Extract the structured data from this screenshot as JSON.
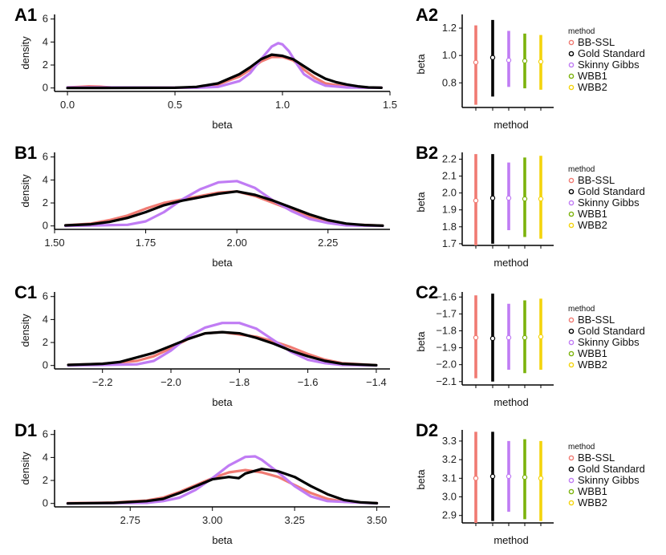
{
  "figure": {
    "legend_title": "method",
    "methods": [
      "BB-SSL",
      "Gold Standard",
      "Skinny Gibbs",
      "WBB1",
      "WBB2"
    ],
    "colors": {
      "BB-SSL": "#f07a72",
      "Gold Standard": "#000000",
      "Skinny Gibbs": "#c07cf4",
      "WBB1": "#7cb30c",
      "WBB2": "#f4d40c"
    }
  },
  "chart_data": [
    {
      "id": "A1",
      "type": "line",
      "label": "A1",
      "xlabel": "beta",
      "ylabel": "density",
      "xlim": [
        -0.06,
        1.5
      ],
      "ylim": [
        -0.3,
        6.4
      ],
      "x_ticks": [
        0.0,
        0.5,
        1.0,
        1.5
      ],
      "x_tick_labels": [
        "0.0",
        "0.5",
        "1.0",
        "1.5"
      ],
      "y_ticks": [
        0,
        2,
        4,
        6
      ],
      "y_tick_labels": [
        "0",
        "2",
        "4",
        "6"
      ],
      "series": [
        {
          "name": "BB-SSL",
          "x": [
            0.0,
            0.05,
            0.1,
            0.15,
            0.2,
            0.5,
            0.6,
            0.7,
            0.8,
            0.85,
            0.9,
            0.95,
            1.0,
            1.05,
            1.1,
            1.15,
            1.2,
            1.3,
            1.4,
            1.46
          ],
          "y": [
            0.05,
            0.1,
            0.15,
            0.12,
            0.05,
            0.02,
            0.05,
            0.3,
            1.0,
            1.6,
            2.3,
            2.7,
            2.7,
            2.4,
            1.6,
            0.9,
            0.4,
            0.1,
            0.03,
            0.02
          ]
        },
        {
          "name": "Skinny Gibbs",
          "x": [
            0.0,
            0.2,
            0.6,
            0.7,
            0.8,
            0.85,
            0.9,
            0.95,
            0.98,
            1.0,
            1.03,
            1.07,
            1.1,
            1.15,
            1.2,
            1.3,
            1.4,
            1.46
          ],
          "y": [
            0.05,
            0.05,
            0.02,
            0.1,
            0.6,
            1.3,
            2.5,
            3.6,
            3.9,
            3.8,
            3.2,
            2.0,
            1.2,
            0.6,
            0.2,
            0.05,
            0.02,
            0.02
          ]
        },
        {
          "name": "Gold Standard",
          "x": [
            0.0,
            0.5,
            0.6,
            0.7,
            0.8,
            0.85,
            0.9,
            0.95,
            1.0,
            1.05,
            1.1,
            1.15,
            1.2,
            1.25,
            1.3,
            1.35,
            1.4,
            1.46
          ],
          "y": [
            0.0,
            0.02,
            0.1,
            0.4,
            1.2,
            1.8,
            2.5,
            2.9,
            2.8,
            2.5,
            1.9,
            1.3,
            0.8,
            0.5,
            0.3,
            0.15,
            0.05,
            0.02
          ]
        }
      ],
      "interval": {
        "label": "A2",
        "xlabel": "method",
        "ylabel": "beta",
        "ylim": [
          0.62,
          1.3
        ],
        "y_ticks": [
          0.8,
          1.0,
          1.2
        ],
        "y_tick_labels": [
          "0.8",
          "1.0",
          "1.2"
        ],
        "methods": [
          "BB-SSL",
          "Gold Standard",
          "Skinny Gibbs",
          "WBB1",
          "WBB2"
        ],
        "lower": [
          0.64,
          0.7,
          0.77,
          0.76,
          0.75
        ],
        "upper": [
          1.22,
          1.26,
          1.18,
          1.16,
          1.15
        ],
        "mean": [
          0.95,
          0.985,
          0.965,
          0.96,
          0.955
        ]
      }
    },
    {
      "id": "B1",
      "type": "line",
      "label": "B1",
      "xlabel": "beta",
      "ylabel": "density",
      "xlim": [
        1.5,
        2.42
      ],
      "ylim": [
        -0.3,
        6.4
      ],
      "x_ticks": [
        1.5,
        1.75,
        2.0,
        2.25
      ],
      "x_tick_labels": [
        "1.50",
        "1.75",
        "2.00",
        "2.25"
      ],
      "y_ticks": [
        0,
        2,
        4,
        6
      ],
      "y_tick_labels": [
        "0",
        "2",
        "4",
        "6"
      ],
      "series": [
        {
          "name": "BB-SSL",
          "x": [
            1.53,
            1.6,
            1.65,
            1.7,
            1.75,
            1.8,
            1.85,
            1.9,
            1.95,
            2.0,
            2.05,
            2.1,
            2.15,
            2.2,
            2.25,
            2.3,
            2.4
          ],
          "y": [
            0.05,
            0.2,
            0.5,
            0.9,
            1.5,
            2.0,
            2.3,
            2.6,
            2.9,
            3.0,
            2.6,
            2.0,
            1.4,
            0.8,
            0.4,
            0.15,
            0.02
          ]
        },
        {
          "name": "Skinny Gibbs",
          "x": [
            1.53,
            1.7,
            1.75,
            1.8,
            1.85,
            1.9,
            1.95,
            2.0,
            2.05,
            2.1,
            2.15,
            2.2,
            2.25,
            2.3,
            2.4
          ],
          "y": [
            0.0,
            0.1,
            0.4,
            1.2,
            2.3,
            3.2,
            3.8,
            3.9,
            3.3,
            2.2,
            1.3,
            0.6,
            0.25,
            0.05,
            0.0
          ]
        },
        {
          "name": "Gold Standard",
          "x": [
            1.53,
            1.6,
            1.65,
            1.7,
            1.75,
            1.8,
            1.85,
            1.9,
            1.95,
            2.0,
            2.05,
            2.1,
            2.15,
            2.2,
            2.25,
            2.3,
            2.35,
            2.4
          ],
          "y": [
            0.05,
            0.15,
            0.35,
            0.7,
            1.2,
            1.8,
            2.2,
            2.5,
            2.8,
            3.0,
            2.7,
            2.2,
            1.6,
            1.0,
            0.5,
            0.2,
            0.08,
            0.02
          ]
        }
      ],
      "interval": {
        "label": "B2",
        "xlabel": "method",
        "ylabel": "beta",
        "ylim": [
          1.69,
          2.24
        ],
        "y_ticks": [
          1.7,
          1.8,
          1.9,
          2.0,
          2.1,
          2.2
        ],
        "y_tick_labels": [
          "1.7",
          "1.8",
          "1.9",
          "2.0",
          "2.1",
          "2.2"
        ],
        "methods": [
          "BB-SSL",
          "Gold Standard",
          "Skinny Gibbs",
          "WBB1",
          "WBB2"
        ],
        "lower": [
          1.69,
          1.7,
          1.78,
          1.74,
          1.73
        ],
        "upper": [
          2.23,
          2.23,
          2.18,
          2.21,
          2.22
        ],
        "mean": [
          1.955,
          1.97,
          1.97,
          1.965,
          1.965
        ]
      }
    },
    {
      "id": "C1",
      "type": "line",
      "label": "C1",
      "xlabel": "beta",
      "ylabel": "density",
      "xlim": [
        -2.34,
        -1.36
      ],
      "ylim": [
        -0.3,
        6.4
      ],
      "x_ticks": [
        -2.2,
        -2.0,
        -1.8,
        -1.6,
        -1.4
      ],
      "x_tick_labels": [
        "−2.2",
        "−2.0",
        "−1.8",
        "−1.6",
        "−1.4"
      ],
      "y_ticks": [
        0,
        2,
        4,
        6
      ],
      "y_tick_labels": [
        "0",
        "2",
        "4",
        "6"
      ],
      "series": [
        {
          "name": "BB-SSL",
          "x": [
            -2.3,
            -2.2,
            -2.1,
            -2.05,
            -2.0,
            -1.95,
            -1.9,
            -1.85,
            -1.8,
            -1.75,
            -1.7,
            -1.65,
            -1.6,
            -1.55,
            -1.5,
            -1.4
          ],
          "y": [
            0.05,
            0.15,
            0.4,
            0.8,
            1.5,
            2.3,
            2.8,
            2.9,
            2.7,
            2.5,
            2.1,
            1.6,
            1.0,
            0.5,
            0.2,
            0.03
          ]
        },
        {
          "name": "Skinny Gibbs",
          "x": [
            -2.3,
            -2.1,
            -2.05,
            -2.0,
            -1.95,
            -1.9,
            -1.85,
            -1.8,
            -1.75,
            -1.7,
            -1.65,
            -1.6,
            -1.55,
            -1.5,
            -1.4
          ],
          "y": [
            0.0,
            0.1,
            0.4,
            1.3,
            2.5,
            3.3,
            3.7,
            3.7,
            3.2,
            2.2,
            1.2,
            0.5,
            0.2,
            0.05,
            0.0
          ]
        },
        {
          "name": "Gold Standard",
          "x": [
            -2.3,
            -2.2,
            -2.15,
            -2.1,
            -2.05,
            -2.0,
            -1.95,
            -1.9,
            -1.85,
            -1.8,
            -1.75,
            -1.7,
            -1.65,
            -1.6,
            -1.55,
            -1.5,
            -1.4
          ],
          "y": [
            0.05,
            0.15,
            0.3,
            0.7,
            1.1,
            1.7,
            2.3,
            2.8,
            2.9,
            2.8,
            2.4,
            1.9,
            1.3,
            0.8,
            0.4,
            0.15,
            0.02
          ]
        }
      ],
      "interval": {
        "label": "C2",
        "xlabel": "method",
        "ylabel": "beta",
        "ylim": [
          -2.12,
          -1.57
        ],
        "y_ticks": [
          -2.1,
          -2.0,
          -1.9,
          -1.8,
          -1.7,
          -1.6
        ],
        "y_tick_labels": [
          "−2.1",
          "−2.0",
          "−1.9",
          "−1.8",
          "−1.7",
          "−1.6"
        ],
        "methods": [
          "BB-SSL",
          "Gold Standard",
          "Skinny Gibbs",
          "WBB1",
          "WBB2"
        ],
        "lower": [
          -2.08,
          -2.1,
          -2.03,
          -2.05,
          -2.03
        ],
        "upper": [
          -1.59,
          -1.58,
          -1.64,
          -1.62,
          -1.61
        ],
        "mean": [
          -1.84,
          -1.845,
          -1.84,
          -1.84,
          -1.835
        ]
      }
    },
    {
      "id": "D1",
      "type": "line",
      "label": "D1",
      "xlabel": "beta",
      "ylabel": "density",
      "xlim": [
        2.52,
        3.54
      ],
      "ylim": [
        -0.3,
        6.4
      ],
      "x_ticks": [
        2.75,
        3.0,
        3.25,
        3.5
      ],
      "x_tick_labels": [
        "2.75",
        "3.00",
        "3.25",
        "3.50"
      ],
      "y_ticks": [
        0,
        2,
        4,
        6
      ],
      "y_tick_labels": [
        "0",
        "2",
        "4",
        "6"
      ],
      "series": [
        {
          "name": "BB-SSL",
          "x": [
            2.56,
            2.7,
            2.8,
            2.85,
            2.9,
            2.95,
            3.0,
            3.05,
            3.1,
            3.15,
            3.2,
            3.25,
            3.3,
            3.35,
            3.4,
            3.5
          ],
          "y": [
            0.02,
            0.08,
            0.25,
            0.5,
            1.0,
            1.6,
            2.2,
            2.7,
            2.9,
            2.7,
            2.3,
            1.6,
            0.9,
            0.4,
            0.15,
            0.02
          ]
        },
        {
          "name": "Skinny Gibbs",
          "x": [
            2.56,
            2.8,
            2.85,
            2.9,
            2.95,
            3.0,
            3.05,
            3.1,
            3.13,
            3.15,
            3.2,
            3.25,
            3.3,
            3.35,
            3.5
          ],
          "y": [
            0.0,
            0.05,
            0.2,
            0.5,
            1.2,
            2.2,
            3.3,
            4.05,
            4.1,
            3.8,
            2.7,
            1.5,
            0.6,
            0.2,
            0.0
          ]
        },
        {
          "name": "Gold Standard",
          "x": [
            2.56,
            2.7,
            2.8,
            2.85,
            2.9,
            2.95,
            3.0,
            3.05,
            3.08,
            3.1,
            3.15,
            3.2,
            3.25,
            3.3,
            3.35,
            3.4,
            3.45,
            3.5
          ],
          "y": [
            0.0,
            0.05,
            0.2,
            0.4,
            0.9,
            1.5,
            2.1,
            2.3,
            2.2,
            2.6,
            3.0,
            2.8,
            2.3,
            1.5,
            0.8,
            0.3,
            0.1,
            0.02
          ]
        }
      ],
      "interval": {
        "label": "D2",
        "xlabel": "method",
        "ylabel": "beta",
        "ylim": [
          2.86,
          3.36
        ],
        "y_ticks": [
          2.9,
          3.0,
          3.1,
          3.2,
          3.3
        ],
        "y_tick_labels": [
          "2.9",
          "3.0",
          "3.1",
          "3.2",
          "3.3"
        ],
        "methods": [
          "BB-SSL",
          "Gold Standard",
          "Skinny Gibbs",
          "WBB1",
          "WBB2"
        ],
        "lower": [
          2.86,
          2.87,
          2.92,
          2.88,
          2.87
        ],
        "upper": [
          3.35,
          3.35,
          3.3,
          3.31,
          3.3
        ],
        "mean": [
          3.1,
          3.11,
          3.11,
          3.105,
          3.1
        ]
      }
    }
  ]
}
